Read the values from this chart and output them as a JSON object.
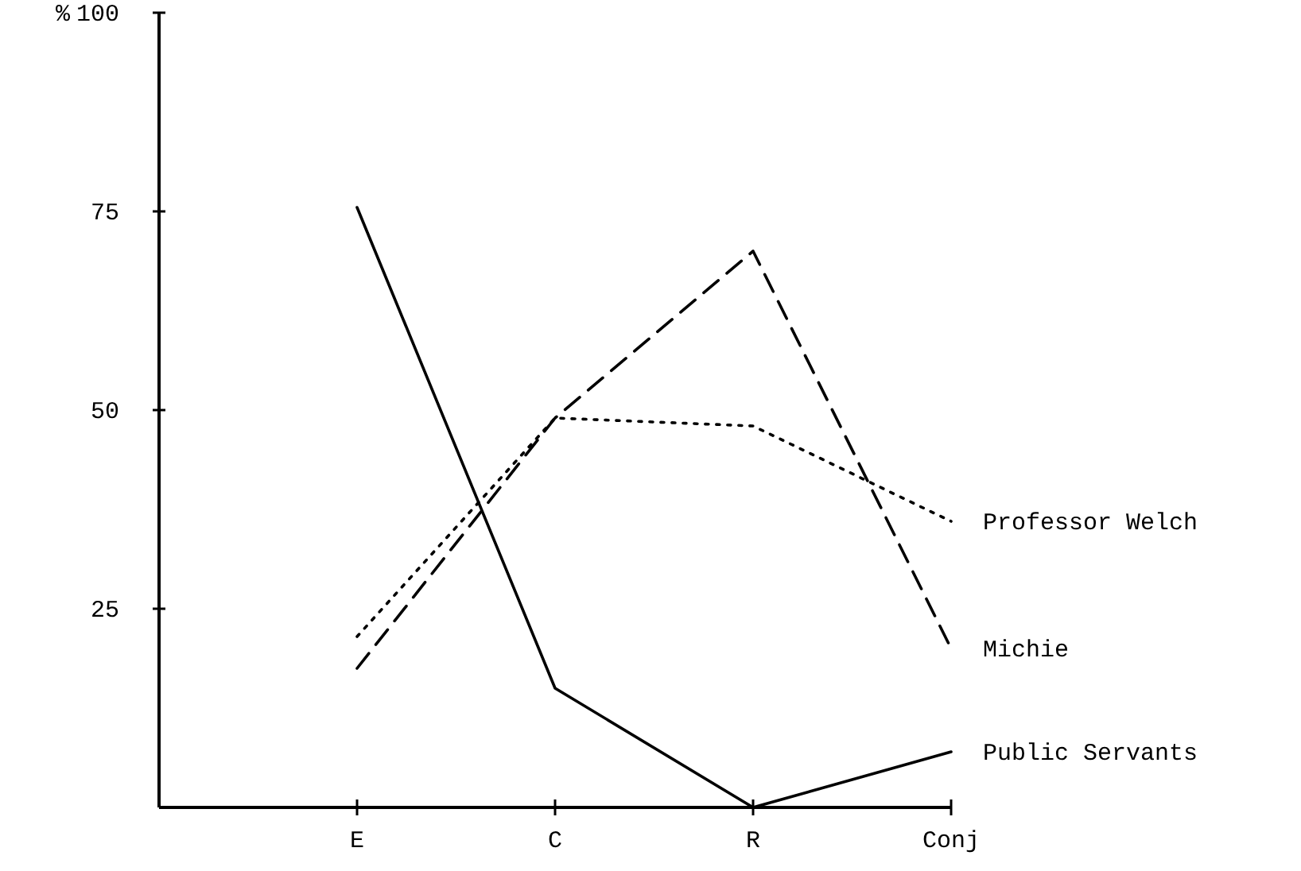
{
  "chart_data": {
    "type": "line",
    "ylabel": "%",
    "categories": [
      "E",
      "C",
      "R",
      "Conj"
    ],
    "ylim": [
      0,
      100
    ],
    "yticks": [
      25,
      50,
      75,
      100
    ],
    "grid": false,
    "marker": "none",
    "series": [
      {
        "name": "Professor Welch",
        "color": "#000000",
        "line_style": "dotted",
        "values": [
          21.5,
          49,
          48,
          36
        ]
      },
      {
        "name": "Michie",
        "color": "#000000",
        "line_style": "dashed",
        "values": [
          17.5,
          49,
          70,
          20
        ]
      },
      {
        "name": "Public Servants",
        "color": "#000000",
        "line_style": "solid",
        "values": [
          75.5,
          15,
          0,
          7
        ]
      }
    ]
  }
}
